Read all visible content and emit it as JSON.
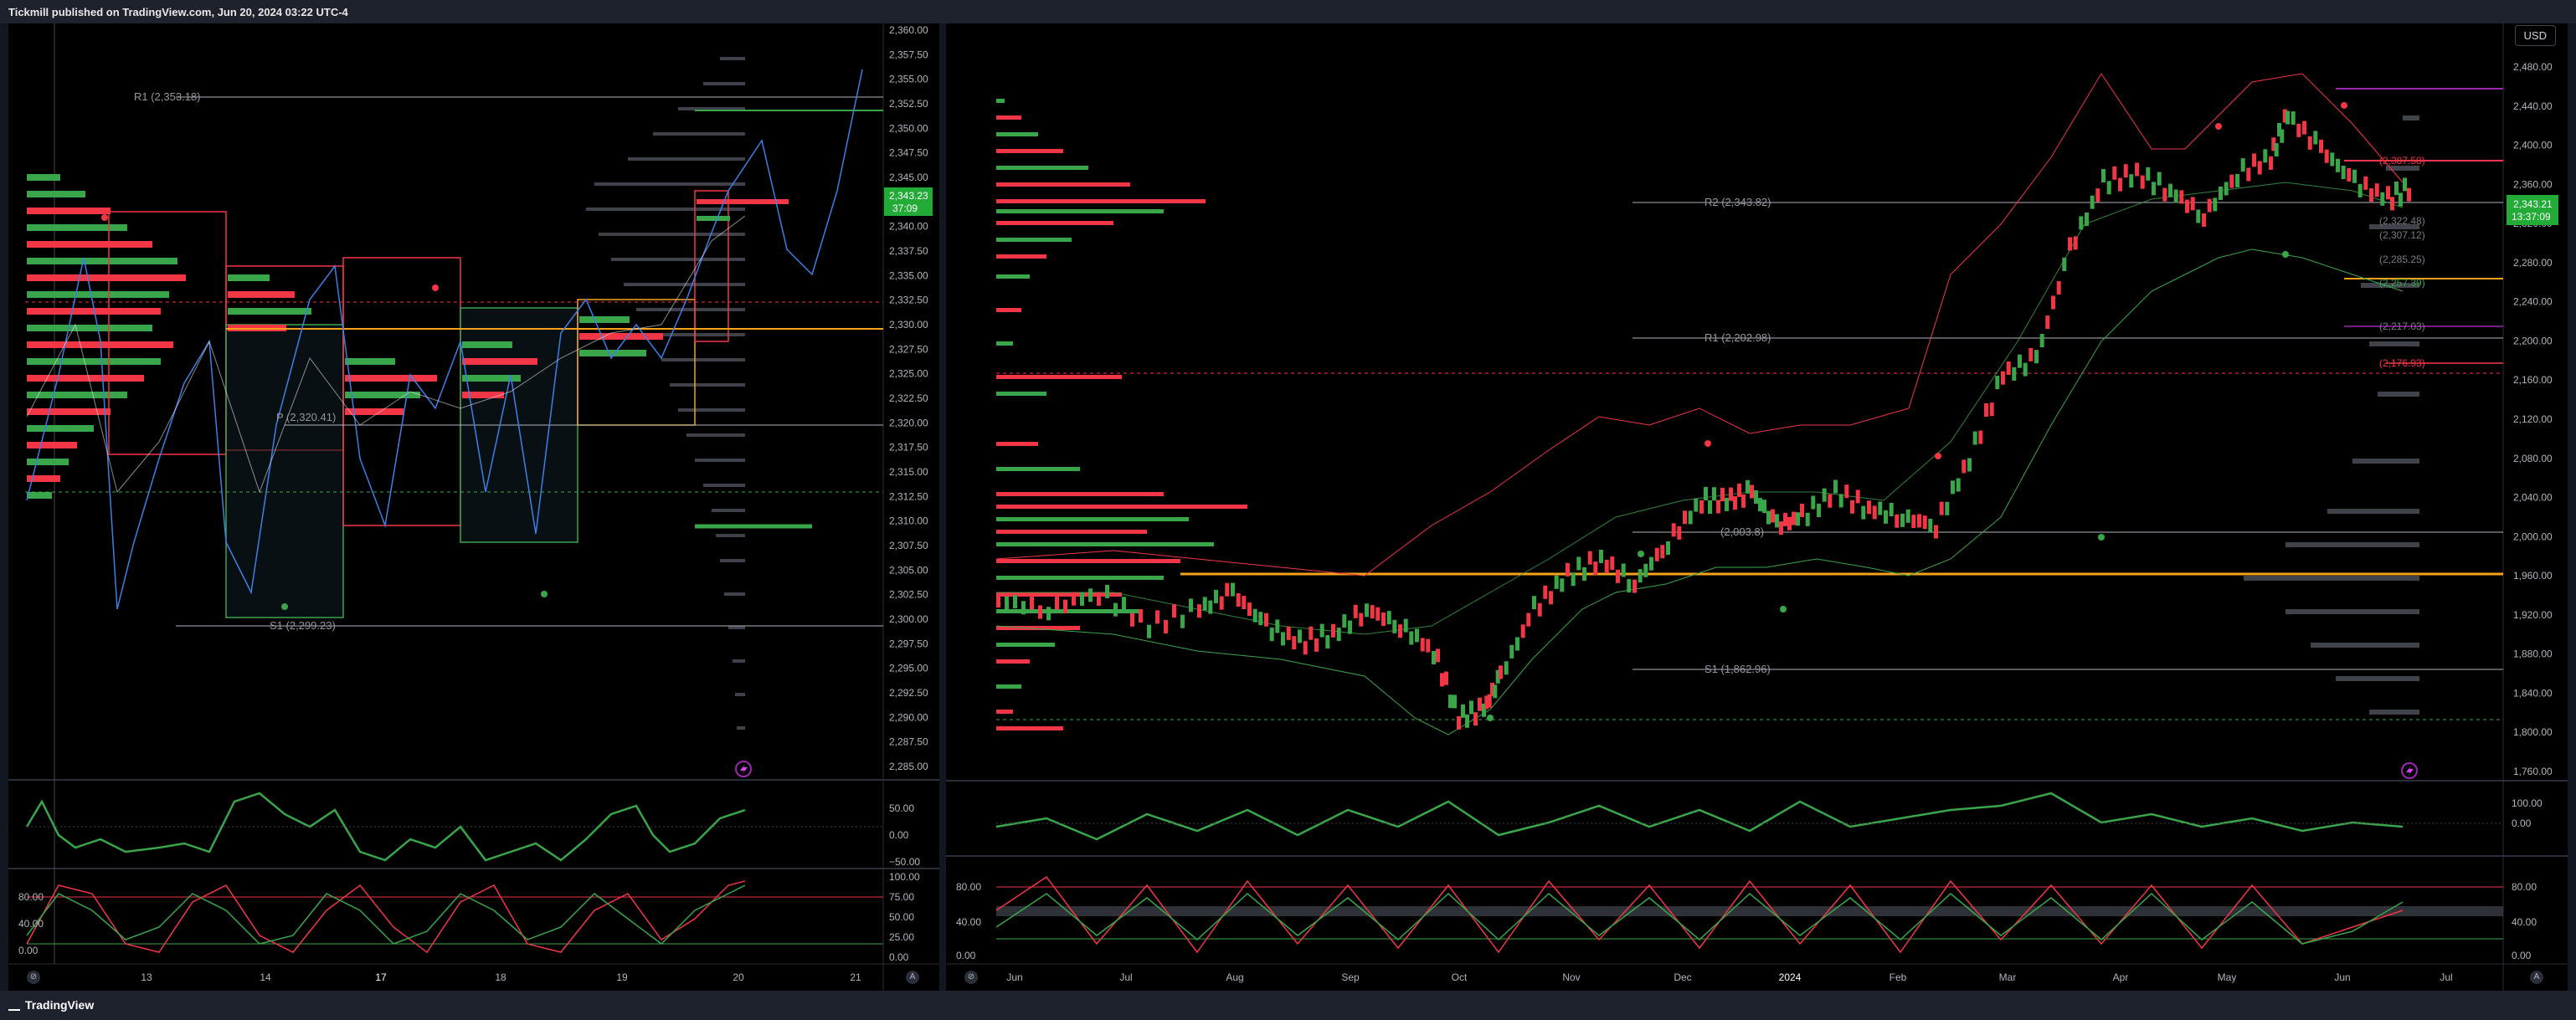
{
  "header": {
    "publisher_text": "Tickmill published on TradingView.com, Jun 20, 2024 03:22 UTC-4"
  },
  "footer": {
    "brand": "TradingView"
  },
  "left_chart": {
    "price_axis": [
      "2,360.00",
      "2,357.50",
      "2,355.00",
      "2,352.50",
      "2,350.00",
      "2,347.50",
      "2,345.00",
      "2,342.50",
      "2,340.00",
      "2,337.50",
      "2,335.00",
      "2,332.50",
      "2,330.00",
      "2,327.50",
      "2,325.00",
      "2,322.50",
      "2,320.00",
      "2,317.50",
      "2,315.00",
      "2,312.50",
      "2,310.00",
      "2,307.50",
      "2,305.00",
      "2,302.50",
      "2,300.00",
      "2,297.50",
      "2,295.00",
      "2,292.50",
      "2,290.00",
      "2,287.50",
      "2,285.00"
    ],
    "current_price": "2,343.23",
    "countdown": "37:09",
    "pivots": {
      "r1": "R1 (2,353.18)",
      "p": "P (2,320.41)",
      "s1": "S1 (2,299.23)"
    },
    "time_axis": [
      "13",
      "14",
      "17",
      "18",
      "19",
      "20",
      "21"
    ],
    "osc1_axis": [
      "50.00",
      "0.00",
      "−50.00"
    ],
    "osc2_axis": [
      "80.00",
      "40.00",
      "0.00"
    ],
    "osc2_axis_right": [
      "100.00",
      "75.00",
      "50.00",
      "25.00",
      "0.00"
    ],
    "axis_buttons": {
      "left": "⊘",
      "right": "A"
    }
  },
  "right_chart": {
    "currency": "USD",
    "price_axis": [
      "2,480.00",
      "2,440.00",
      "2,400.00",
      "2,360.00",
      "2,320.00",
      "2,280.00",
      "2,240.00",
      "2,200.00",
      "2,160.00",
      "2,120.00",
      "2,080.00",
      "2,040.00",
      "2,000.00",
      "1,960.00",
      "1,920.00",
      "1,880.00",
      "1,840.00",
      "1,800.00",
      "1,760.00"
    ],
    "current_price": "2,343.21",
    "countdown": "13:37:09",
    "pivots": {
      "r2": "R2 (2,343.82)",
      "r1": "R1 (2,202.98)",
      "p": "(2,003.8)",
      "s1": "S1 (1,862.96)"
    },
    "right_labels": [
      "(2,387.58)",
      "(2,322.48)",
      "(2,307.12)",
      "(2,285.25)",
      "(2,257.39)",
      "(2,217.03)",
      "(2,176.93)"
    ],
    "time_axis": [
      "Jun",
      "Jul",
      "Aug",
      "Sep",
      "Oct",
      "Nov",
      "Dec",
      "2024",
      "Feb",
      "Mar",
      "Apr",
      "May",
      "Jun",
      "Jul"
    ],
    "osc1_axis": [
      "100.00",
      "0.00"
    ],
    "osc2_axis": [
      "80.00",
      "40.00",
      "0.00"
    ],
    "osc2_axis_right": [
      "80.00",
      "40.00",
      "0.00"
    ],
    "axis_buttons": {
      "left": "⊘",
      "right": "A"
    }
  },
  "colors": {
    "bull": "#3aa64a",
    "bear": "#f23645",
    "pivot": "#b2b5be",
    "orange": "#f7a21b",
    "blue": "#3d7fe6",
    "price_tag": "#22ab37"
  }
}
